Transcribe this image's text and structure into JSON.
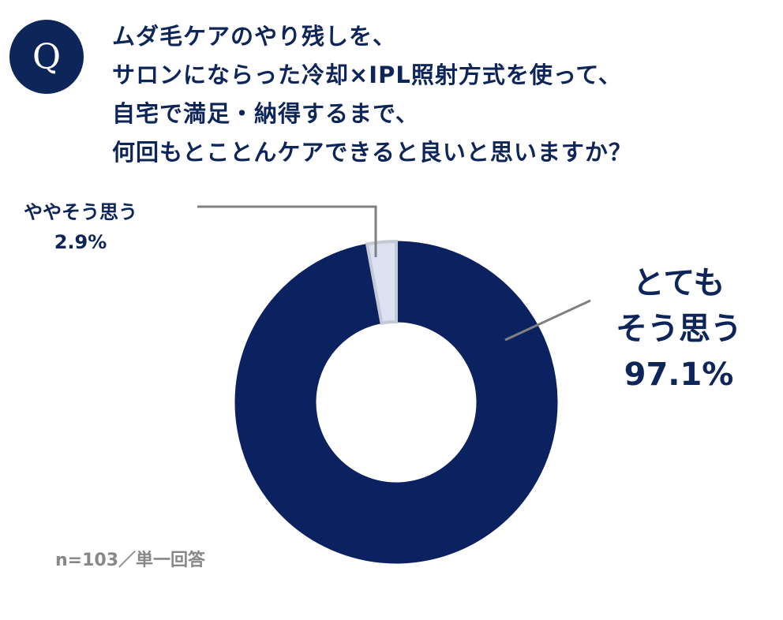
{
  "question": {
    "badge": "Q",
    "lines": [
      "ムダ毛ケアのやり残しを、",
      "サロンにならった冷却×IPL照射方式を使って、",
      "自宅で満足・納得するまで、",
      "何回もとことんケアできると良いと思いますか？"
    ]
  },
  "chart_data": {
    "type": "pie",
    "donut": true,
    "start": "top, clockwise",
    "categories": [
      "とてもそう思う",
      "ややそう思う"
    ],
    "values": [
      97.1,
      2.9
    ],
    "value_labels": [
      "97.1%",
      "2.9%"
    ],
    "label_lines": [
      [
        "とても",
        "そう思う"
      ],
      [
        "ややそう思う"
      ]
    ],
    "colors": [
      "#0b2160",
      "#dce2f1"
    ]
  },
  "footnote": "n=103／単一回答"
}
